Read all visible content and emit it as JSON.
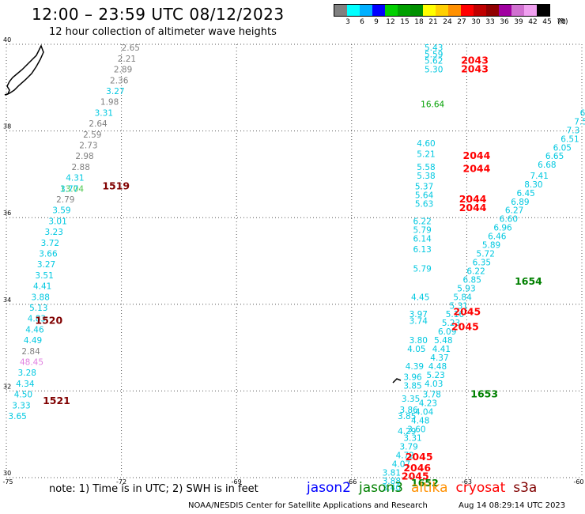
{
  "title": "12:00 – 23:59 UTC 08/12/2023",
  "subtitle": "12 hour collection of altimeter wave heights",
  "legend": {
    "labels": [
      "3",
      "6",
      "9",
      "12",
      "15",
      "18",
      "21",
      "24",
      "27",
      "30",
      "33",
      "36",
      "39",
      "42",
      "45",
      "70"
    ],
    "unit": "(ft)",
    "colors": [
      "#808080",
      "#00ffff",
      "#00b0ff",
      "#0000ff",
      "#00d000",
      "#00a000",
      "#009000",
      "#ffff00",
      "#ffd000",
      "#ff9000",
      "#ff0000",
      "#c00000",
      "#900000",
      "#a000a0",
      "#d070d0",
      "#f0a0f0",
      "#000000"
    ]
  },
  "note": "note: 1) Time is in UTC; 2) SWH is in feet",
  "satellites": [
    {
      "name": "jason2",
      "color": "#0000ff"
    },
    {
      "name": "jason3",
      "color": "#008000"
    },
    {
      "name": "altika",
      "color": "#ff9000"
    },
    {
      "name": "cryosat",
      "color": "#ff0000"
    },
    {
      "name": "s3a",
      "color": "#800000"
    }
  ],
  "credit": "NOAA/NESDIS Center for Satellite Applications and Research",
  "timestamp": "Aug 14 08:29:14 UTC 2023",
  "chart_data": {
    "type": "scatter",
    "xlim": [
      -75,
      -60
    ],
    "ylim": [
      30,
      40
    ],
    "x_ticks": [
      "-75",
      "-72",
      "-69",
      "-66",
      "-63",
      "-60"
    ],
    "y_ticks": [
      "40",
      "38",
      "36",
      "34",
      "32",
      "30"
    ],
    "grid": true,
    "points": [
      {
        "lon": -72.0,
        "lat": 39.85,
        "v": "2.65",
        "c": "#808080"
      },
      {
        "lon": -72.1,
        "lat": 39.6,
        "v": "2.21",
        "c": "#808080"
      },
      {
        "lon": -72.2,
        "lat": 39.35,
        "v": "2.89",
        "c": "#808080"
      },
      {
        "lon": -72.3,
        "lat": 39.1,
        "v": "2.36",
        "c": "#808080"
      },
      {
        "lon": -72.4,
        "lat": 38.85,
        "v": "3.27",
        "c": "#00c8e0"
      },
      {
        "lon": -72.55,
        "lat": 38.6,
        "v": "1.98",
        "c": "#808080"
      },
      {
        "lon": -72.7,
        "lat": 38.35,
        "v": "3.31",
        "c": "#00c8e0"
      },
      {
        "lon": -72.85,
        "lat": 38.1,
        "v": "2.64",
        "c": "#808080"
      },
      {
        "lon": -73.0,
        "lat": 37.85,
        "v": "2.59",
        "c": "#808080"
      },
      {
        "lon": -73.1,
        "lat": 37.6,
        "v": "2.73",
        "c": "#808080"
      },
      {
        "lon": -73.2,
        "lat": 37.35,
        "v": "2.98",
        "c": "#808080"
      },
      {
        "lon": -73.3,
        "lat": 37.1,
        "v": "2.88",
        "c": "#808080"
      },
      {
        "lon": -73.45,
        "lat": 36.85,
        "v": "4.31",
        "c": "#00c8e0"
      },
      {
        "lon": -73.6,
        "lat": 36.6,
        "v": "13.04",
        "c": "#50c850"
      },
      {
        "lon": -73.6,
        "lat": 36.6,
        "v": "3.77",
        "c": "#00c8e0"
      },
      {
        "lon": -73.7,
        "lat": 36.35,
        "v": "2.79",
        "c": "#808080"
      },
      {
        "lon": -73.8,
        "lat": 36.1,
        "v": "3.59",
        "c": "#00c8e0"
      },
      {
        "lon": -73.9,
        "lat": 35.85,
        "v": "3.01",
        "c": "#00c8e0"
      },
      {
        "lon": -74.0,
        "lat": 35.6,
        "v": "3.23",
        "c": "#00c8e0"
      },
      {
        "lon": -74.1,
        "lat": 35.35,
        "v": "3.72",
        "c": "#00c8e0"
      },
      {
        "lon": -74.15,
        "lat": 35.1,
        "v": "3.66",
        "c": "#00c8e0"
      },
      {
        "lon": -74.2,
        "lat": 34.85,
        "v": "3.27",
        "c": "#00c8e0"
      },
      {
        "lon": -74.25,
        "lat": 34.6,
        "v": "3.51",
        "c": "#00c8e0"
      },
      {
        "lon": -74.3,
        "lat": 34.35,
        "v": "4.41",
        "c": "#00c8e0"
      },
      {
        "lon": -74.35,
        "lat": 34.1,
        "v": "3.88",
        "c": "#00c8e0"
      },
      {
        "lon": -74.4,
        "lat": 33.85,
        "v": "5.13",
        "c": "#00c8e0"
      },
      {
        "lon": -74.45,
        "lat": 33.6,
        "v": "4.83",
        "c": "#00c8e0"
      },
      {
        "lon": -74.5,
        "lat": 33.35,
        "v": "4.46",
        "c": "#00c8e0"
      },
      {
        "lon": -74.55,
        "lat": 33.1,
        "v": "4.49",
        "c": "#00c8e0"
      },
      {
        "lon": -74.6,
        "lat": 32.85,
        "v": "2.84",
        "c": "#808080"
      },
      {
        "lon": -74.65,
        "lat": 32.6,
        "v": "48.45",
        "c": "#e080e0"
      },
      {
        "lon": -74.7,
        "lat": 32.35,
        "v": "3.28",
        "c": "#00c8e0"
      },
      {
        "lon": -74.75,
        "lat": 32.1,
        "v": "4.34",
        "c": "#00c8e0"
      },
      {
        "lon": -74.8,
        "lat": 31.85,
        "v": "4.50",
        "c": "#00c8e0"
      },
      {
        "lon": -74.85,
        "lat": 31.6,
        "v": "3.33",
        "c": "#00c8e0"
      },
      {
        "lon": -74.95,
        "lat": 31.35,
        "v": "3.65",
        "c": "#00c8e0"
      },
      {
        "lon": -64.1,
        "lat": 39.85,
        "v": "5.43",
        "c": "#00c8e0"
      },
      {
        "lon": -64.1,
        "lat": 39.7,
        "v": "5.59",
        "c": "#00c8e0"
      },
      {
        "lon": -64.1,
        "lat": 39.55,
        "v": "5.62",
        "c": "#00c8e0"
      },
      {
        "lon": -64.1,
        "lat": 39.35,
        "v": "5.30",
        "c": "#00c8e0"
      },
      {
        "lon": -64.2,
        "lat": 38.55,
        "v": "16.64",
        "c": "#00a000"
      },
      {
        "lon": -64.3,
        "lat": 37.65,
        "v": "4.60",
        "c": "#00c8e0"
      },
      {
        "lon": -64.3,
        "lat": 37.4,
        "v": "5.21",
        "c": "#00c8e0"
      },
      {
        "lon": -64.3,
        "lat": 37.1,
        "v": "5.58",
        "c": "#00c8e0"
      },
      {
        "lon": -64.3,
        "lat": 36.9,
        "v": "5.38",
        "c": "#00c8e0"
      },
      {
        "lon": -64.35,
        "lat": 36.65,
        "v": "5.37",
        "c": "#00c8e0"
      },
      {
        "lon": -64.35,
        "lat": 36.45,
        "v": "5.64",
        "c": "#00c8e0"
      },
      {
        "lon": -64.35,
        "lat": 36.25,
        "v": "5.63",
        "c": "#00c8e0"
      },
      {
        "lon": -64.4,
        "lat": 35.85,
        "v": "6.22",
        "c": "#00c8e0"
      },
      {
        "lon": -64.4,
        "lat": 35.65,
        "v": "5.79",
        "c": "#00c8e0"
      },
      {
        "lon": -64.4,
        "lat": 35.45,
        "v": "6.14",
        "c": "#00c8e0"
      },
      {
        "lon": -64.4,
        "lat": 35.2,
        "v": "6.13",
        "c": "#00c8e0"
      },
      {
        "lon": -64.4,
        "lat": 34.75,
        "v": "5.79",
        "c": "#00c8e0"
      },
      {
        "lon": -64.45,
        "lat": 34.1,
        "v": "4.45",
        "c": "#00c8e0"
      },
      {
        "lon": -64.5,
        "lat": 33.7,
        "v": "3.97",
        "c": "#00c8e0"
      },
      {
        "lon": -64.5,
        "lat": 33.55,
        "v": "3.74",
        "c": "#00c8e0"
      },
      {
        "lon": -64.5,
        "lat": 33.1,
        "v": "3.80",
        "c": "#00c8e0"
      },
      {
        "lon": -64.55,
        "lat": 32.9,
        "v": "4.05",
        "c": "#00c8e0"
      },
      {
        "lon": -64.6,
        "lat": 32.5,
        "v": "4.39",
        "c": "#00c8e0"
      },
      {
        "lon": -64.65,
        "lat": 32.25,
        "v": "3.96",
        "c": "#00c8e0"
      },
      {
        "lon": -64.65,
        "lat": 32.05,
        "v": "3.85",
        "c": "#00c8e0"
      },
      {
        "lon": -64.7,
        "lat": 31.75,
        "v": "3.35",
        "c": "#00c8e0"
      },
      {
        "lon": -64.75,
        "lat": 31.5,
        "v": "3.86",
        "c": "#00c8e0"
      },
      {
        "lon": -64.8,
        "lat": 31.35,
        "v": "3.85",
        "c": "#00c8e0"
      },
      {
        "lon": -64.8,
        "lat": 31.0,
        "v": "4.29",
        "c": "#00c8e0"
      },
      {
        "lon": -60.05,
        "lat": 38.35,
        "v": "6.",
        "c": "#00c8e0"
      },
      {
        "lon": -60.2,
        "lat": 38.15,
        "v": "7.5",
        "c": "#00c8e0"
      },
      {
        "lon": -60.4,
        "lat": 37.95,
        "v": "7.3",
        "c": "#00c8e0"
      },
      {
        "lon": -60.55,
        "lat": 37.75,
        "v": "6.51",
        "c": "#00c8e0"
      },
      {
        "lon": -60.75,
        "lat": 37.55,
        "v": "6.05",
        "c": "#00c8e0"
      },
      {
        "lon": -60.95,
        "lat": 37.35,
        "v": "6.65",
        "c": "#00c8e0"
      },
      {
        "lon": -61.15,
        "lat": 37.15,
        "v": "6.68",
        "c": "#00c8e0"
      },
      {
        "lon": -61.35,
        "lat": 36.9,
        "v": "7.41",
        "c": "#00c8e0"
      },
      {
        "lon": -61.5,
        "lat": 36.7,
        "v": "8.30",
        "c": "#00c8e0"
      },
      {
        "lon": -61.7,
        "lat": 36.5,
        "v": "6.45",
        "c": "#00c8e0"
      },
      {
        "lon": -61.85,
        "lat": 36.3,
        "v": "6.89",
        "c": "#00c8e0"
      },
      {
        "lon": -62.0,
        "lat": 36.1,
        "v": "6.27",
        "c": "#00c8e0"
      },
      {
        "lon": -62.15,
        "lat": 35.9,
        "v": "6.60",
        "c": "#00c8e0"
      },
      {
        "lon": -62.3,
        "lat": 35.7,
        "v": "6.96",
        "c": "#00c8e0"
      },
      {
        "lon": -62.45,
        "lat": 35.5,
        "v": "6.46",
        "c": "#00c8e0"
      },
      {
        "lon": -62.6,
        "lat": 35.3,
        "v": "5.89",
        "c": "#00c8e0"
      },
      {
        "lon": -62.75,
        "lat": 35.1,
        "v": "5.72",
        "c": "#00c8e0"
      },
      {
        "lon": -62.85,
        "lat": 34.9,
        "v": "6.35",
        "c": "#00c8e0"
      },
      {
        "lon": -63.0,
        "lat": 34.7,
        "v": "6.22",
        "c": "#00c8e0"
      },
      {
        "lon": -63.1,
        "lat": 34.5,
        "v": "6.85",
        "c": "#00c8e0"
      },
      {
        "lon": -63.25,
        "lat": 34.3,
        "v": "5.93",
        "c": "#00c8e0"
      },
      {
        "lon": -63.35,
        "lat": 34.1,
        "v": "5.84",
        "c": "#00c8e0"
      },
      {
        "lon": -63.45,
        "lat": 33.9,
        "v": "5.31",
        "c": "#00c8e0"
      },
      {
        "lon": -63.55,
        "lat": 33.7,
        "v": "5.16",
        "c": "#00c8e0"
      },
      {
        "lon": -63.65,
        "lat": 33.5,
        "v": "5.23",
        "c": "#00c8e0"
      },
      {
        "lon": -63.75,
        "lat": 33.3,
        "v": "6.09",
        "c": "#00c8e0"
      },
      {
        "lon": -63.85,
        "lat": 33.1,
        "v": "5.48",
        "c": "#00c8e0"
      },
      {
        "lon": -63.9,
        "lat": 32.9,
        "v": "4.41",
        "c": "#00c8e0"
      },
      {
        "lon": -63.95,
        "lat": 32.7,
        "v": "4.37",
        "c": "#00c8e0"
      },
      {
        "lon": -64.0,
        "lat": 32.5,
        "v": "4.48",
        "c": "#00c8e0"
      },
      {
        "lon": -64.05,
        "lat": 32.3,
        "v": "5.23",
        "c": "#00c8e0"
      },
      {
        "lon": -64.1,
        "lat": 32.1,
        "v": "4.03",
        "c": "#00c8e0"
      },
      {
        "lon": -64.15,
        "lat": 31.85,
        "v": "3.78",
        "c": "#00c8e0"
      },
      {
        "lon": -64.25,
        "lat": 31.65,
        "v": "4.23",
        "c": "#00c8e0"
      },
      {
        "lon": -64.35,
        "lat": 31.45,
        "v": "4.04",
        "c": "#00c8e0"
      },
      {
        "lon": -64.45,
        "lat": 31.25,
        "v": "4.48",
        "c": "#00c8e0"
      },
      {
        "lon": -64.55,
        "lat": 31.05,
        "v": "3.60",
        "c": "#00c8e0"
      },
      {
        "lon": -64.65,
        "lat": 30.85,
        "v": "3.31",
        "c": "#00c8e0"
      },
      {
        "lon": -64.75,
        "lat": 30.65,
        "v": "3.79",
        "c": "#00c8e0"
      },
      {
        "lon": -64.85,
        "lat": 30.45,
        "v": "4.72",
        "c": "#00c8e0"
      },
      {
        "lon": -64.95,
        "lat": 30.25,
        "v": "4.07",
        "c": "#00c8e0"
      },
      {
        "lon": -65.2,
        "lat": 30.05,
        "v": "3.81",
        "c": "#00c8e0"
      },
      {
        "lon": -65.2,
        "lat": 29.85,
        "v": "3.88",
        "c": "#00c8e0"
      },
      {
        "lon": -65.2,
        "lat": 29.7,
        "v": "3.40",
        "c": "#00c8e0"
      }
    ],
    "pass_ids": [
      {
        "lon": -72.5,
        "lat": 36.65,
        "id": "1519",
        "c": "#800000"
      },
      {
        "lon": -74.25,
        "lat": 33.55,
        "id": "1520",
        "c": "#800000"
      },
      {
        "lon": -74.05,
        "lat": 31.7,
        "id": "1521",
        "c": "#800000"
      },
      {
        "lon": -63.15,
        "lat": 39.55,
        "id": "2043",
        "c": "#ff0000"
      },
      {
        "lon": -63.15,
        "lat": 39.35,
        "id": "2043",
        "c": "#ff0000"
      },
      {
        "lon": -63.1,
        "lat": 37.35,
        "id": "2044",
        "c": "#ff0000"
      },
      {
        "lon": -63.1,
        "lat": 37.05,
        "id": "2044",
        "c": "#ff0000"
      },
      {
        "lon": -63.2,
        "lat": 36.35,
        "id": "2044",
        "c": "#ff0000"
      },
      {
        "lon": -63.2,
        "lat": 36.15,
        "id": "2044",
        "c": "#ff0000"
      },
      {
        "lon": -63.35,
        "lat": 33.75,
        "id": "2045",
        "c": "#ff0000"
      },
      {
        "lon": -63.4,
        "lat": 33.4,
        "id": "2045",
        "c": "#ff0000"
      },
      {
        "lon": -61.75,
        "lat": 34.45,
        "id": "1654",
        "c": "#008000"
      },
      {
        "lon": -62.9,
        "lat": 31.85,
        "id": "1653",
        "c": "#008000"
      },
      {
        "lon": -64.6,
        "lat": 30.4,
        "id": "2045",
        "c": "#ff0000"
      },
      {
        "lon": -64.65,
        "lat": 30.15,
        "id": "2046",
        "c": "#ff0000"
      },
      {
        "lon": -64.7,
        "lat": 29.95,
        "id": "2045",
        "c": "#ff0000"
      },
      {
        "lon": -64.45,
        "lat": 29.8,
        "id": "1652",
        "c": "#008000"
      }
    ]
  }
}
